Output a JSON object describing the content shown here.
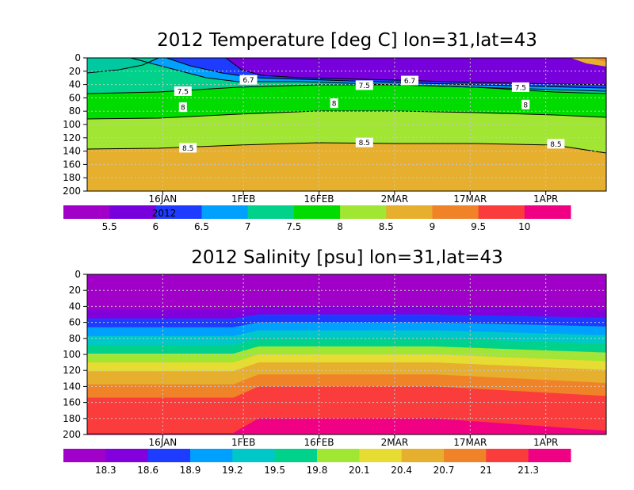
{
  "chart_data": [
    {
      "type": "heatmap",
      "title": "2012 Temperature [deg C] lon=31,lat=43",
      "xlabel": "",
      "ylabel": "",
      "x_ticks": [
        "16JAN",
        "1FEB",
        "16FEB",
        "2MAR",
        "17MAR",
        "1APR"
      ],
      "x_tick_days": [
        16,
        32,
        47,
        62,
        77,
        92
      ],
      "xlim_days": [
        1,
        104
      ],
      "y_ticks": [
        0,
        20,
        40,
        60,
        80,
        100,
        120,
        140,
        160,
        180,
        200
      ],
      "ylim": [
        0,
        200
      ],
      "y_inverted": true,
      "grid": true,
      "colorbar_label": "2012",
      "colorbar_ticks": [
        "5.5",
        "6",
        "6.5",
        "7",
        "7.5",
        "8",
        "8.5",
        "9",
        "9.5",
        "10"
      ],
      "colorbar_colors": [
        "#a000c8",
        "#7800dc",
        "#1e3cff",
        "#00a0ff",
        "#00d28c",
        "#00dc00",
        "#a0e632",
        "#e6af2d",
        "#f08228",
        "#fa3c3c",
        "#f00082"
      ],
      "contour_labels": [
        {
          "value": "7.5",
          "day": 20,
          "depth": 50
        },
        {
          "value": "7.5",
          "day": 56,
          "depth": 41
        },
        {
          "value": "7.5",
          "day": 87,
          "depth": 44
        },
        {
          "value": "8",
          "day": 20,
          "depth": 74
        },
        {
          "value": "8",
          "day": 50,
          "depth": 68
        },
        {
          "value": "8",
          "day": 88,
          "depth": 70
        },
        {
          "value": "8.5",
          "day": 21,
          "depth": 135
        },
        {
          "value": "8.5",
          "day": 56,
          "depth": 127
        },
        {
          "value": "8.5",
          "day": 94,
          "depth": 129
        },
        {
          "value": "6.7",
          "day": 33,
          "depth": 33
        },
        {
          "value": "6.7",
          "day": 65,
          "depth": 34
        }
      ]
    },
    {
      "type": "heatmap",
      "title": "2012 Salinity [psu] lon=31,lat=43",
      "xlabel": "",
      "ylabel": "",
      "x_ticks": [
        "16JAN",
        "1FEB",
        "16FEB",
        "2MAR",
        "17MAR",
        "1APR"
      ],
      "x_tick_days": [
        16,
        32,
        47,
        62,
        77,
        92
      ],
      "xlim_days": [
        1,
        104
      ],
      "y_ticks": [
        0,
        20,
        40,
        60,
        80,
        100,
        120,
        140,
        160,
        180,
        200
      ],
      "ylim": [
        0,
        200
      ],
      "y_inverted": true,
      "grid": true,
      "colorbar_ticks": [
        "18.3",
        "18.6",
        "18.9",
        "19.2",
        "19.5",
        "19.8",
        "20.1",
        "20.4",
        "20.7",
        "21",
        "21.3"
      ],
      "colorbar_colors": [
        "#a000c8",
        "#8200dc",
        "#1e3cff",
        "#00a0ff",
        "#00c8c8",
        "#00d28c",
        "#a0e632",
        "#e6dc32",
        "#e6af2d",
        "#f08228",
        "#fa3c3c",
        "#f00082"
      ],
      "layer_top_depths_feb": [
        0,
        40,
        50,
        60,
        70,
        80,
        90,
        100,
        110,
        125,
        140,
        180,
        195
      ]
    }
  ]
}
